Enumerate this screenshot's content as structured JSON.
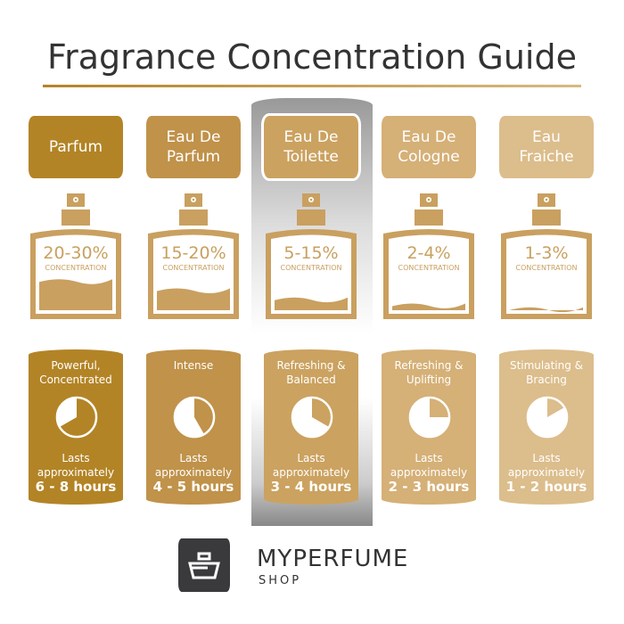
{
  "title": "Fragrance Concentration Guide",
  "colors": {
    "bottle": "#c9a060",
    "text_dark": "#333333"
  },
  "columns": [
    {
      "name": "Parfum",
      "concentration": "20-30%",
      "concentration_label": "CONCENTRATION",
      "fill_level": 0.42,
      "description": "Powerful,\nConcentrated",
      "lasts": "Lasts\napproximately",
      "hours": "6 - 8 hours",
      "clock_fraction": 0.667,
      "color": "#b38426",
      "highlighted": false
    },
    {
      "name": "Eau De\nParfum",
      "concentration": "15-20%",
      "concentration_label": "CONCENTRATION",
      "fill_level": 0.3,
      "description": "Intense",
      "lasts": "Lasts\napproximately",
      "hours": "4 - 5 hours",
      "clock_fraction": 0.417,
      "color": "#c0924a",
      "highlighted": false
    },
    {
      "name": "Eau De\nToilette",
      "concentration": "5-15%",
      "concentration_label": "CONCENTRATION",
      "fill_level": 0.18,
      "description": "Refreshing &\nBalanced",
      "lasts": "Lasts\napproximately",
      "hours": "3 - 4 hours",
      "clock_fraction": 0.333,
      "color": "#cba260",
      "highlighted": true
    },
    {
      "name": "Eau De\nCologne",
      "concentration": "2-4%",
      "concentration_label": "CONCENTRATION",
      "fill_level": 0.1,
      "description": "Refreshing &\nUplifting",
      "lasts": "Lasts\napproximately",
      "hours": "2 - 3 hours",
      "clock_fraction": 0.25,
      "color": "#d5b077",
      "highlighted": false
    },
    {
      "name": "Eau\nFraiche",
      "concentration": "1-3%",
      "concentration_label": "CONCENTRATION",
      "fill_level": 0.05,
      "description": "Stimulating &\nBracing",
      "lasts": "Lasts\napproximately",
      "hours": "1 - 2 hours",
      "clock_fraction": 0.167,
      "color": "#dcbd8c",
      "highlighted": false
    }
  ],
  "brand": {
    "name": "MYPERFUME",
    "sub": "SHOP"
  }
}
